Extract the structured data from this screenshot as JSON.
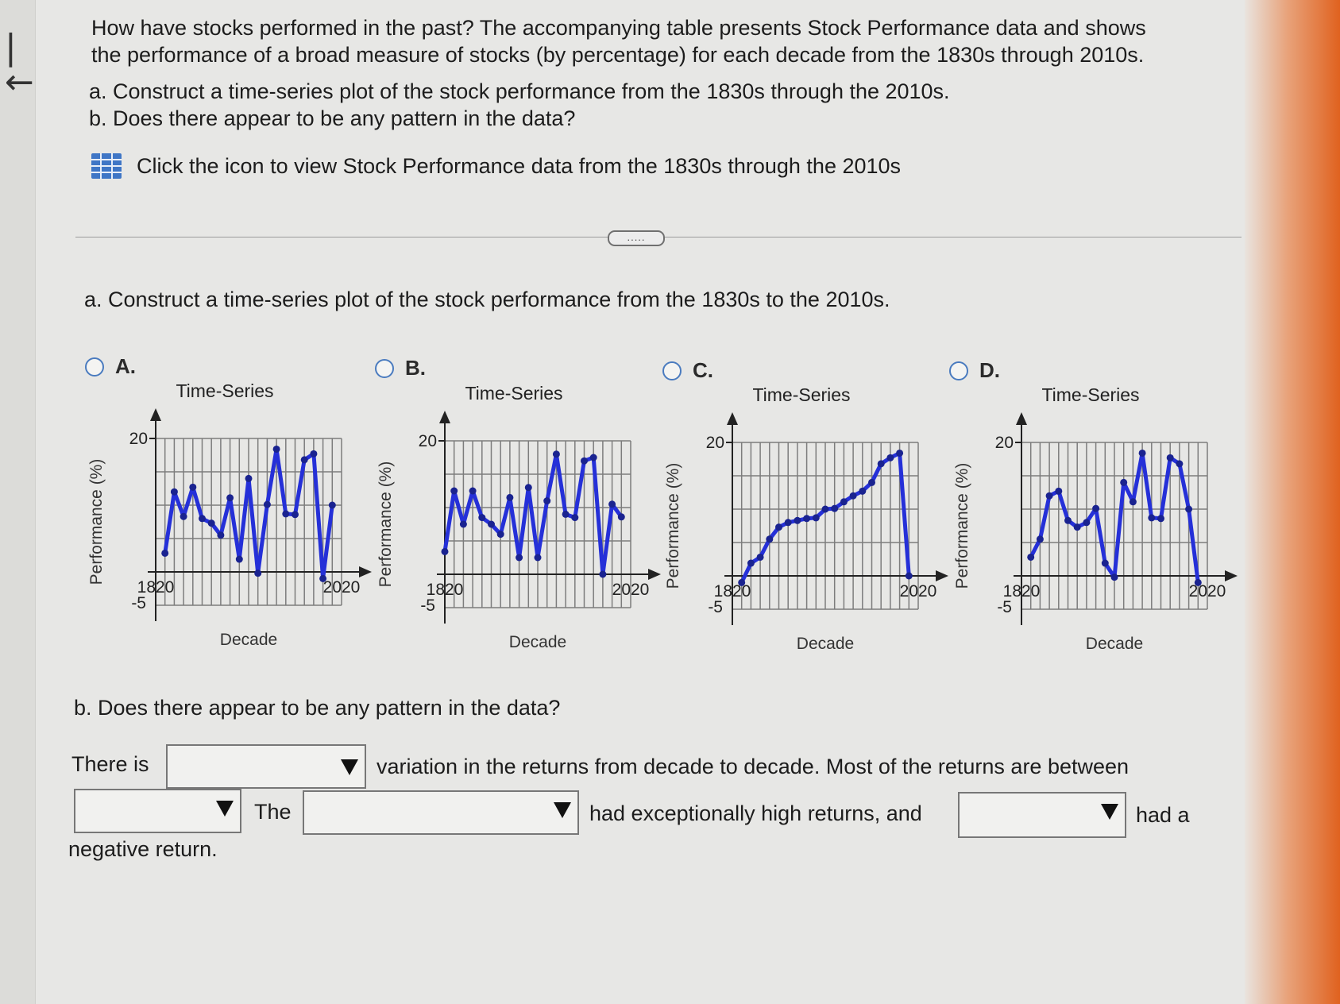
{
  "nav": {
    "back_icon": "first-page-arrow-icon",
    "back_glyph": "|←"
  },
  "question": {
    "line1": "How have stocks performed in the past? The accompanying table presents Stock Performance data and shows",
    "line2": "the performance of a broad measure of stocks (by percentage) for each decade from the 1830s through 2010s.",
    "part_a": "a. Construct a time-series plot of the stock performance from the 1830s through the 2010s.",
    "part_b": "b. Does there appear to be any pattern in the data?",
    "data_link": "Click the icon to view Stock Performance data from the 1830s through the 2010s",
    "data_icon": "table-grid-icon",
    "expand_label": "....."
  },
  "part_a": {
    "prompt": "a. Construct a time-series plot of the stock performance from the 1830s to the 2010s.",
    "options": [
      {
        "letter": "A."
      },
      {
        "letter": "B."
      },
      {
        "letter": "C."
      },
      {
        "letter": "D."
      }
    ]
  },
  "chart_data": [
    {
      "type": "line",
      "title": "Time-Series",
      "xlabel": "Decade",
      "ylabel": "Performance (%)",
      "x_ticks": [
        "1820",
        "2020"
      ],
      "y_ticks": [
        "20",
        "-5"
      ],
      "xlim": [
        1820,
        2020
      ],
      "ylim": [
        -5,
        20
      ],
      "grid": true,
      "x": [
        1830,
        1840,
        1850,
        1860,
        1870,
        1880,
        1890,
        1900,
        1910,
        1920,
        1930,
        1940,
        1950,
        1960,
        1970,
        1980,
        1990,
        2000,
        2010
      ],
      "values": [
        2.8,
        12.0,
        8.3,
        12.7,
        8.0,
        7.3,
        5.5,
        11.1,
        1.9,
        14.0,
        -0.2,
        10.1,
        18.4,
        8.7,
        8.6,
        16.8,
        17.7,
        -1.0,
        10.0
      ]
    },
    {
      "type": "line",
      "title": "Time-Series",
      "xlabel": "Decade",
      "ylabel": "Performance (%)",
      "x_ticks": [
        "1820",
        "2020"
      ],
      "y_ticks": [
        "20",
        "-5"
      ],
      "xlim": [
        1820,
        2020
      ],
      "ylim": [
        -5,
        20
      ],
      "grid": true,
      "x": [
        1820,
        1830,
        1840,
        1850,
        1860,
        1870,
        1880,
        1890,
        1900,
        1910,
        1920,
        1930,
        1940,
        1950,
        1960,
        1970,
        1980,
        1990,
        2000,
        2010
      ],
      "values": [
        3.4,
        12.5,
        7.5,
        12.5,
        8.5,
        7.5,
        6.0,
        11.5,
        2.5,
        13.0,
        2.5,
        11.0,
        18.0,
        9.0,
        8.5,
        17.0,
        17.5,
        0.0,
        10.5,
        8.6
      ]
    },
    {
      "type": "line",
      "title": "Time-Series",
      "xlabel": "Decade",
      "ylabel": "Performance (%)",
      "x_ticks": [
        "1820",
        "2020"
      ],
      "y_ticks": [
        "20",
        "-5"
      ],
      "xlim": [
        1820,
        2020
      ],
      "ylim": [
        -5,
        20
      ],
      "grid": true,
      "x": [
        1830,
        1840,
        1850,
        1860,
        1870,
        1880,
        1890,
        1900,
        1910,
        1920,
        1930,
        1940,
        1950,
        1960,
        1970,
        1980,
        1990,
        2000,
        2010
      ],
      "values": [
        -1.0,
        1.9,
        2.8,
        5.5,
        7.3,
        8.0,
        8.3,
        8.6,
        8.7,
        10.0,
        10.1,
        11.1,
        12.0,
        12.7,
        14.0,
        16.8,
        17.7,
        18.4,
        0.0
      ]
    },
    {
      "type": "line",
      "title": "Time-Series",
      "xlabel": "Decade",
      "ylabel": "Performance (%)",
      "x_ticks": [
        "1820",
        "2020"
      ],
      "y_ticks": [
        "20",
        "-5"
      ],
      "xlim": [
        1820,
        2020
      ],
      "ylim": [
        -5,
        20
      ],
      "grid": true,
      "x": [
        1830,
        1840,
        1850,
        1860,
        1870,
        1880,
        1890,
        1900,
        1910,
        1920,
        1930,
        1940,
        1950,
        1960,
        1970,
        1980,
        1990,
        2000,
        2010
      ],
      "values": [
        2.8,
        5.5,
        12.0,
        12.7,
        8.3,
        7.3,
        8.0,
        10.1,
        1.9,
        -0.2,
        14.0,
        11.1,
        18.4,
        8.7,
        8.6,
        17.7,
        16.8,
        10.0,
        -1.0
      ]
    }
  ],
  "part_b": {
    "prompt": "b. Does there appear to be any pattern in the data?",
    "there_is": "There is",
    "variation": "variation in the returns from decade to decade. Most of the returns are between",
    "the": "The",
    "high": "had exceptionally high returns, and",
    "had_a": "had a",
    "negative": "negative return.",
    "dropdowns": [
      {
        "value": ""
      },
      {
        "value": ""
      },
      {
        "value": ""
      },
      {
        "value": ""
      }
    ]
  }
}
